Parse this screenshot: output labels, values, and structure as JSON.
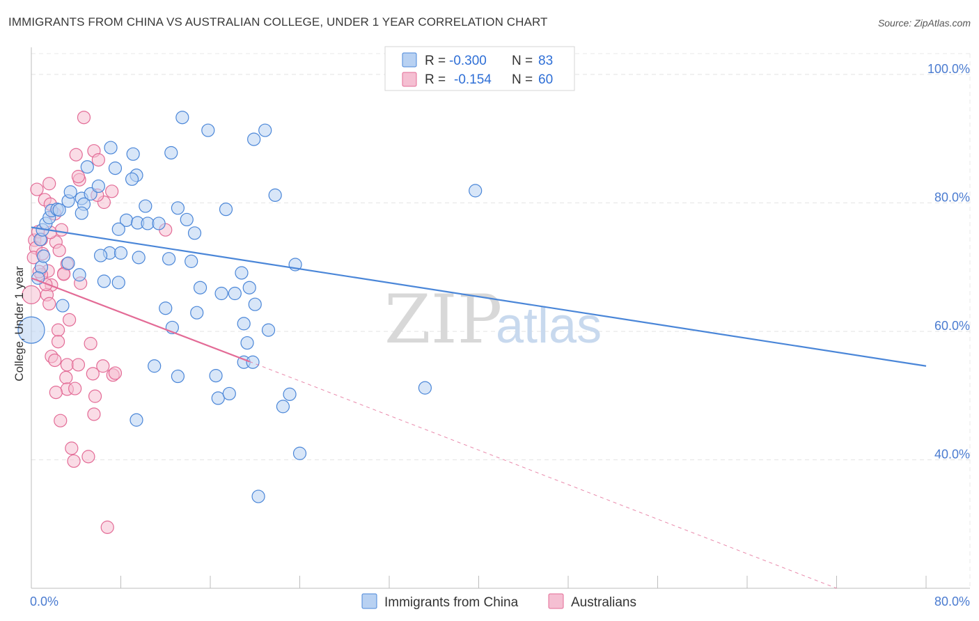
{
  "title": "IMMIGRANTS FROM CHINA VS AUSTRALIAN COLLEGE, UNDER 1 YEAR CORRELATION CHART",
  "source": "Source: ZipAtlas.com",
  "watermark": {
    "zip": "ZIP",
    "atlas": "atlas"
  },
  "colors": {
    "blue": "#4a86d8",
    "blue_fill": "#b8d1f2",
    "pink": "#e36b96",
    "pink_fill": "#f5bfd2",
    "tick_text": "#4a7bd0"
  },
  "legend": {
    "rows": [
      {
        "r_label": "R =",
        "r_value": "-0.300",
        "n_label": "N =",
        "n_value": "83"
      },
      {
        "r_label": "R =",
        "r_value": "-0.154",
        "n_label": "N =",
        "n_value": "60"
      }
    ]
  },
  "chart_data": {
    "type": "scatter",
    "title": "IMMIGRANTS FROM CHINA VS AUSTRALIAN COLLEGE, UNDER 1 YEAR CORRELATION CHART",
    "xlabel": "",
    "ylabel": "College, Under 1 year",
    "xlim": [
      0,
      80
    ],
    "ylim": [
      20,
      104
    ],
    "x_tick_labels": [
      "0.0%",
      "80.0%"
    ],
    "y_ticks": [
      40,
      60,
      80,
      100
    ],
    "y_tick_labels": [
      "40.0%",
      "60.0%",
      "80.0%",
      "100.0%"
    ],
    "grid": true,
    "legend_position": "top-center",
    "series": [
      {
        "name": "Immigrants from China",
        "color": "#4a86d8",
        "R": -0.3,
        "N": 83,
        "trend": {
          "x": [
            0,
            80
          ],
          "y": [
            76.2,
            54.6
          ],
          "dashed_to": null
        },
        "points": [
          [
            0.0,
            60.2,
            3
          ],
          [
            0.9,
            70.0,
            1
          ],
          [
            0.8,
            74.3,
            1
          ],
          [
            1.0,
            75.8,
            1
          ],
          [
            1.3,
            76.8,
            1
          ],
          [
            1.6,
            77.7,
            1
          ],
          [
            1.8,
            78.8,
            1
          ],
          [
            1.1,
            71.7,
            1
          ],
          [
            0.6,
            68.3,
            1
          ],
          [
            2.3,
            79.0,
            1
          ],
          [
            2.5,
            78.9,
            1
          ],
          [
            3.3,
            80.3,
            1
          ],
          [
            3.5,
            81.7,
            1
          ],
          [
            4.5,
            80.7,
            1
          ],
          [
            5.3,
            81.4,
            1
          ],
          [
            4.7,
            79.8,
            1
          ],
          [
            5.0,
            85.6,
            1
          ],
          [
            4.5,
            78.4,
            1
          ],
          [
            6.0,
            82.6,
            1
          ],
          [
            7.1,
            88.6,
            1
          ],
          [
            7.5,
            85.4,
            1
          ],
          [
            9.1,
            87.6,
            1
          ],
          [
            9.4,
            84.3,
            1
          ],
          [
            9.0,
            83.7,
            1
          ],
          [
            12.5,
            87.8,
            1
          ],
          [
            7.0,
            72.2,
            1
          ],
          [
            6.2,
            71.8,
            1
          ],
          [
            6.5,
            67.8,
            1
          ],
          [
            8.0,
            72.2,
            1
          ],
          [
            7.8,
            67.6,
            1
          ],
          [
            8.5,
            77.3,
            1
          ],
          [
            7.8,
            75.9,
            1
          ],
          [
            9.5,
            76.9,
            1
          ],
          [
            10.2,
            79.5,
            1
          ],
          [
            10.4,
            76.8,
            1
          ],
          [
            9.6,
            71.5,
            1
          ],
          [
            11.4,
            76.8,
            1
          ],
          [
            12.3,
            71.3,
            1
          ],
          [
            13.1,
            79.2,
            1
          ],
          [
            13.9,
            77.4,
            1
          ],
          [
            14.3,
            70.9,
            1
          ],
          [
            14.6,
            75.3,
            1
          ],
          [
            15.1,
            66.8,
            1
          ],
          [
            14.8,
            62.9,
            1
          ],
          [
            12.6,
            60.6,
            1
          ],
          [
            12.0,
            63.6,
            1
          ],
          [
            11.0,
            54.6,
            1
          ],
          [
            13.1,
            53.0,
            1
          ],
          [
            19.0,
            55.2,
            1
          ],
          [
            13.5,
            93.3,
            1
          ],
          [
            15.8,
            91.3,
            1
          ],
          [
            19.9,
            89.9,
            1
          ],
          [
            20.9,
            91.3,
            1
          ],
          [
            16.5,
            53.1,
            1
          ],
          [
            16.7,
            49.6,
            1
          ],
          [
            17.0,
            65.9,
            1
          ],
          [
            18.2,
            65.9,
            1
          ],
          [
            18.8,
            69.1,
            1
          ],
          [
            19.5,
            66.8,
            1
          ],
          [
            19.8,
            55.2,
            1
          ],
          [
            17.7,
            50.3,
            1
          ],
          [
            19.0,
            61.2,
            1
          ],
          [
            19.3,
            58.2,
            1
          ],
          [
            20.0,
            64.2,
            1
          ],
          [
            21.2,
            60.2,
            1
          ],
          [
            22.5,
            48.3,
            1
          ],
          [
            23.1,
            50.2,
            1
          ],
          [
            23.6,
            70.4,
            1
          ],
          [
            21.8,
            81.2,
            1
          ],
          [
            17.4,
            79.0,
            1
          ],
          [
            24.0,
            41.0,
            1
          ],
          [
            35.2,
            51.2,
            1
          ],
          [
            39.7,
            81.9,
            1
          ],
          [
            20.3,
            34.3,
            1
          ],
          [
            9.4,
            46.2,
            1
          ],
          [
            2.8,
            64.0,
            1
          ],
          [
            3.3,
            70.6,
            1
          ],
          [
            4.3,
            68.8,
            1
          ]
        ]
      },
      {
        "name": "Australians",
        "color": "#e36b96",
        "R": -0.154,
        "N": 60,
        "trend": {
          "x": [
            0,
            19.5
          ],
          "y": [
            68.3,
            55.3
          ],
          "dashed_to": [
            72,
            20.0
          ]
        },
        "points": [
          [
            0.0,
            65.7,
            2
          ],
          [
            0.3,
            74.2,
            1
          ],
          [
            0.4,
            73.0,
            1
          ],
          [
            0.2,
            71.5,
            1
          ],
          [
            0.6,
            75.5,
            1
          ],
          [
            0.5,
            82.1,
            1
          ],
          [
            1.2,
            80.5,
            1
          ],
          [
            1.6,
            83.0,
            1
          ],
          [
            1.7,
            79.8,
            1
          ],
          [
            2.1,
            78.3,
            1
          ],
          [
            2.7,
            75.8,
            1
          ],
          [
            2.2,
            73.9,
            1
          ],
          [
            2.5,
            72.6,
            1
          ],
          [
            1.0,
            72.1,
            1
          ],
          [
            1.5,
            69.4,
            1
          ],
          [
            1.8,
            67.2,
            1
          ],
          [
            2.9,
            69.0,
            1
          ],
          [
            3.2,
            70.5,
            1
          ],
          [
            2.9,
            68.9,
            1
          ],
          [
            1.4,
            65.7,
            1
          ],
          [
            1.6,
            64.3,
            1
          ],
          [
            3.4,
            61.8,
            1
          ],
          [
            2.4,
            60.2,
            1
          ],
          [
            2.4,
            58.4,
            1
          ],
          [
            1.8,
            56.1,
            1
          ],
          [
            2.1,
            55.5,
            1
          ],
          [
            3.2,
            54.8,
            1
          ],
          [
            4.2,
            54.8,
            1
          ],
          [
            3.1,
            52.8,
            1
          ],
          [
            3.2,
            51.0,
            1
          ],
          [
            3.9,
            51.1,
            1
          ],
          [
            2.2,
            50.5,
            1
          ],
          [
            5.7,
            49.9,
            1
          ],
          [
            5.6,
            47.1,
            1
          ],
          [
            2.6,
            46.1,
            1
          ],
          [
            3.6,
            41.8,
            1
          ],
          [
            3.8,
            39.8,
            1
          ],
          [
            5.1,
            40.5,
            1
          ],
          [
            6.4,
            54.6,
            1
          ],
          [
            5.5,
            53.4,
            1
          ],
          [
            7.3,
            53.2,
            1
          ],
          [
            7.5,
            53.5,
            1
          ],
          [
            5.3,
            58.1,
            1
          ],
          [
            4.4,
            67.5,
            1
          ],
          [
            4.3,
            83.6,
            1
          ],
          [
            4.2,
            84.1,
            1
          ],
          [
            4.0,
            87.5,
            1
          ],
          [
            5.6,
            88.1,
            1
          ],
          [
            6.0,
            86.7,
            1
          ],
          [
            4.7,
            93.3,
            1
          ],
          [
            6.5,
            80.1,
            1
          ],
          [
            7.2,
            81.8,
            1
          ],
          [
            12.0,
            75.8,
            1
          ],
          [
            6.8,
            29.5,
            1
          ],
          [
            0.9,
            68.8,
            1
          ],
          [
            1.3,
            67.3,
            1
          ],
          [
            0.9,
            74.3,
            1
          ],
          [
            1.7,
            75.4,
            1
          ],
          [
            5.9,
            81.2,
            1
          ],
          [
            0.7,
            69.3,
            1
          ]
        ]
      }
    ]
  },
  "bottom_legend": [
    {
      "label": "Immigrants from China"
    },
    {
      "label": "Australians"
    }
  ]
}
